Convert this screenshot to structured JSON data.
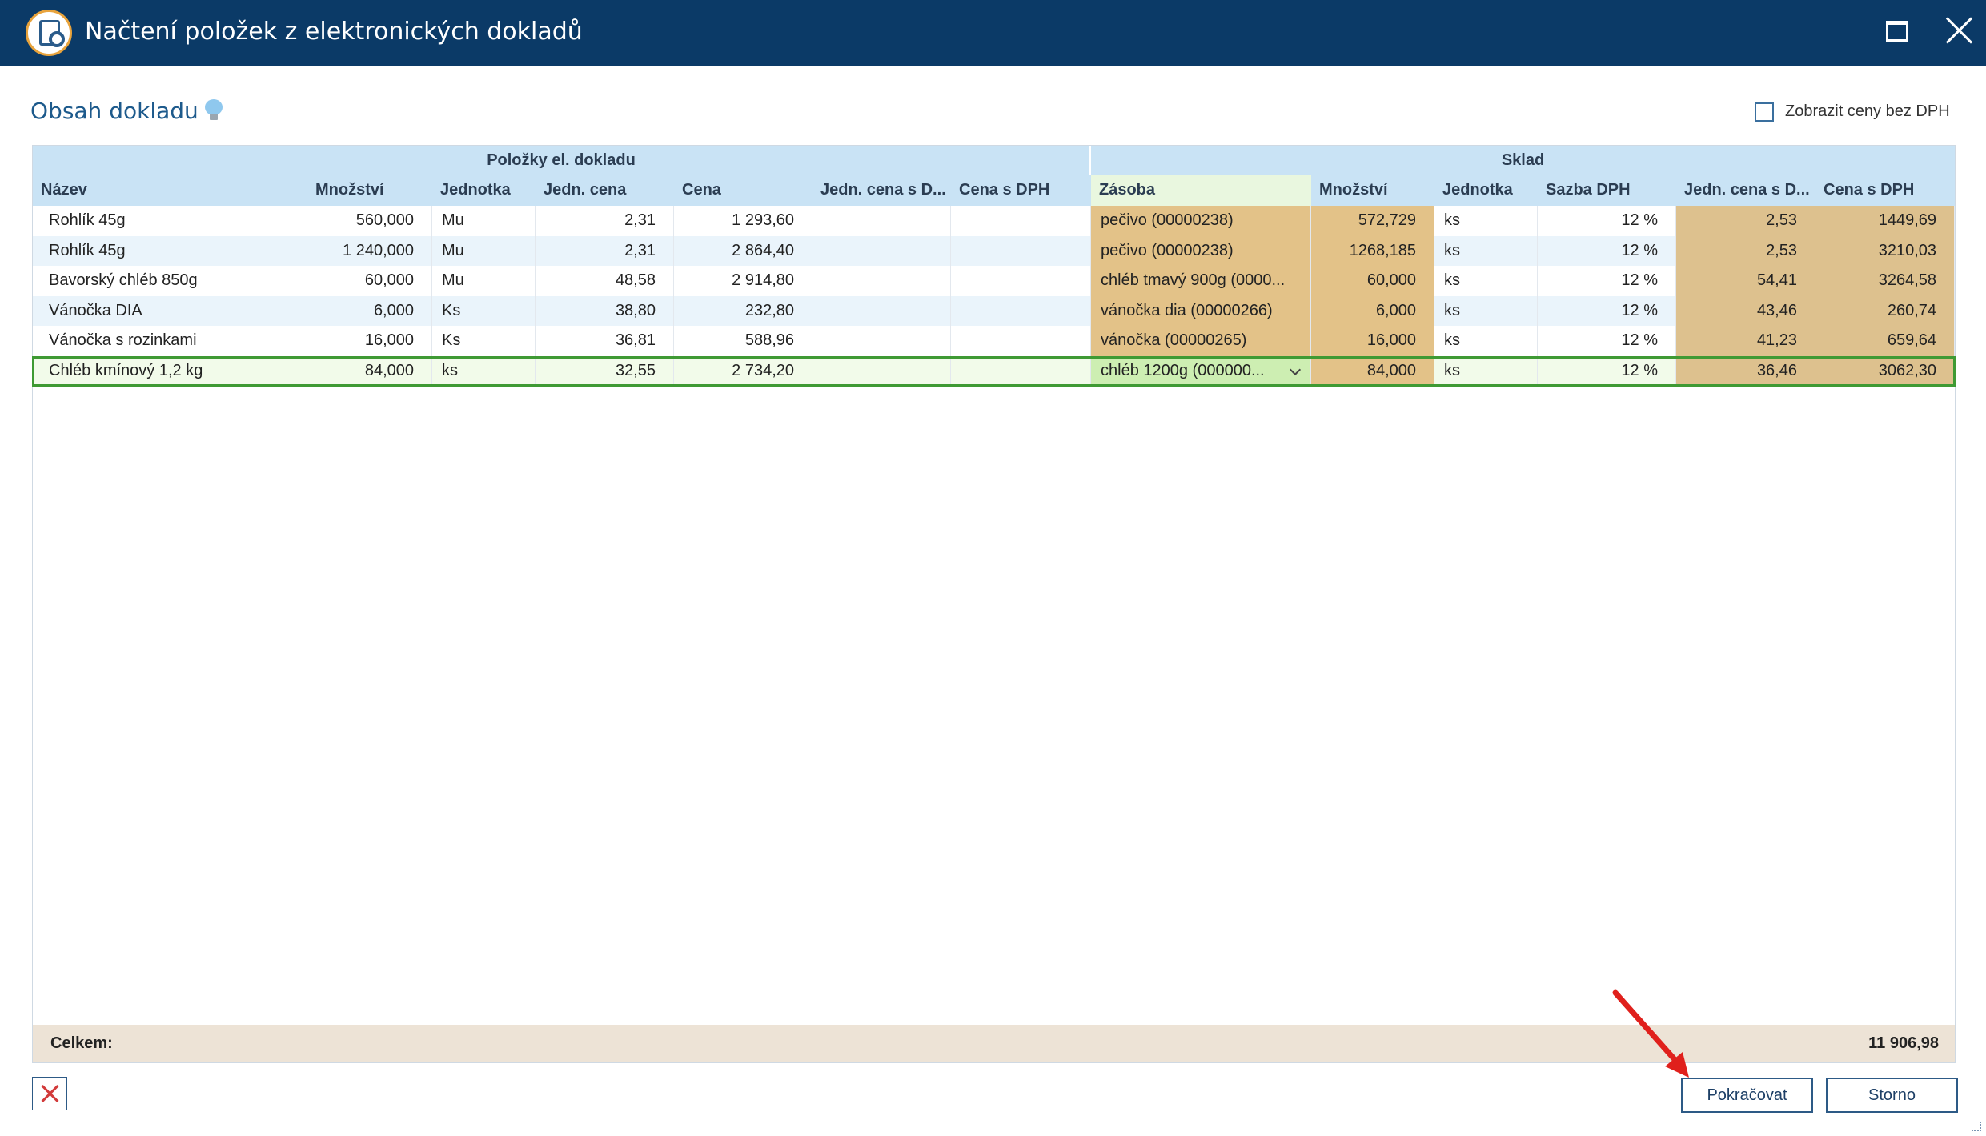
{
  "window": {
    "title": "Načtení položek z elektronických dokladů",
    "app_icon": "document-search-icon",
    "maximize_icon": "maximize-icon",
    "close_icon": "close-icon"
  },
  "section": {
    "title": "Obsah dokladu",
    "hint_icon": "lightbulb-icon"
  },
  "options": {
    "show_prices_without_vat_label": "Zobrazit ceny bez DPH",
    "show_prices_without_vat_checked": false
  },
  "grid": {
    "groups": {
      "left": "Položky el. dokladu",
      "right": "Sklad"
    },
    "columns": {
      "nazev": "Název",
      "mnozstvi": "Množství",
      "jednotka": "Jednotka",
      "jedn_cena": "Jedn. cena",
      "cena": "Cena",
      "jedn_cena_s_dph": "Jedn. cena s D...",
      "cena_s_dph": "Cena s DPH",
      "zasoba": "Zásoba",
      "sklad_mnozstvi": "Množství",
      "sklad_jednotka": "Jednotka",
      "sazba_dph": "Sazba DPH",
      "sklad_jedn_cena_s_dph": "Jedn. cena s D...",
      "sklad_cena_s_dph": "Cena s DPH"
    },
    "rows": [
      {
        "nazev": "Rohlík 45g",
        "mnozstvi": "560,000",
        "jednotka": "Mu",
        "jedn_cena": "2,31",
        "cena": "1 293,60",
        "jedn_cena_s_dph": "",
        "cena_s_dph": "",
        "zasoba": "pečivo (00000238)",
        "sklad_mnozstvi": "572,729",
        "sklad_jednotka": "ks",
        "sazba_dph": "12 %",
        "sklad_jedn_cena_s_dph": "2,53",
        "sklad_cena_s_dph": "1449,69"
      },
      {
        "nazev": "Rohlík 45g",
        "mnozstvi": "1 240,000",
        "jednotka": "Mu",
        "jedn_cena": "2,31",
        "cena": "2 864,40",
        "jedn_cena_s_dph": "",
        "cena_s_dph": "",
        "zasoba": "pečivo (00000238)",
        "sklad_mnozstvi": "1268,185",
        "sklad_jednotka": "ks",
        "sazba_dph": "12 %",
        "sklad_jedn_cena_s_dph": "2,53",
        "sklad_cena_s_dph": "3210,03"
      },
      {
        "nazev": "Bavorský chléb 850g",
        "mnozstvi": "60,000",
        "jednotka": "Mu",
        "jedn_cena": "48,58",
        "cena": "2 914,80",
        "jedn_cena_s_dph": "",
        "cena_s_dph": "",
        "zasoba": "chléb tmavý 900g (0000...",
        "sklad_mnozstvi": "60,000",
        "sklad_jednotka": "ks",
        "sazba_dph": "12 %",
        "sklad_jedn_cena_s_dph": "54,41",
        "sklad_cena_s_dph": "3264,58"
      },
      {
        "nazev": "Vánočka DIA",
        "mnozstvi": "6,000",
        "jednotka": "Ks",
        "jedn_cena": "38,80",
        "cena": "232,80",
        "jedn_cena_s_dph": "",
        "cena_s_dph": "",
        "zasoba": "vánočka dia (00000266)",
        "sklad_mnozstvi": "6,000",
        "sklad_jednotka": "ks",
        "sazba_dph": "12 %",
        "sklad_jedn_cena_s_dph": "43,46",
        "sklad_cena_s_dph": "260,74"
      },
      {
        "nazev": "Vánočka s rozinkami",
        "mnozstvi": "16,000",
        "jednotka": "Ks",
        "jedn_cena": "36,81",
        "cena": "588,96",
        "jedn_cena_s_dph": "",
        "cena_s_dph": "",
        "zasoba": "vánočka (00000265)",
        "sklad_mnozstvi": "16,000",
        "sklad_jednotka": "ks",
        "sazba_dph": "12 %",
        "sklad_jedn_cena_s_dph": "41,23",
        "sklad_cena_s_dph": "659,64"
      },
      {
        "nazev": "Chléb kmínový 1,2 kg",
        "mnozstvi": "84,000",
        "jednotka": "ks",
        "jedn_cena": "32,55",
        "cena": "2 734,20",
        "jedn_cena_s_dph": "",
        "cena_s_dph": "",
        "zasoba": "chléb 1200g (000000...",
        "sklad_mnozstvi": "84,000",
        "sklad_jednotka": "ks",
        "sazba_dph": "12 %",
        "sklad_jedn_cena_s_dph": "36,46",
        "sklad_cena_s_dph": "3062,30"
      }
    ],
    "selected_row": 5,
    "footer": {
      "label": "Celkem:",
      "total": "11 906,98"
    }
  },
  "buttons": {
    "delete_icon": "red-x-icon",
    "continue": "Pokračovat",
    "cancel": "Storno"
  },
  "annotation": {
    "arrow_color": "#e0201c"
  },
  "colors": {
    "titlebar": "#0b3a67",
    "header": "#c9e3f5",
    "stock_cell": "#e3c288",
    "selected_outline": "#3f9a34",
    "footer": "#ede3d6"
  }
}
